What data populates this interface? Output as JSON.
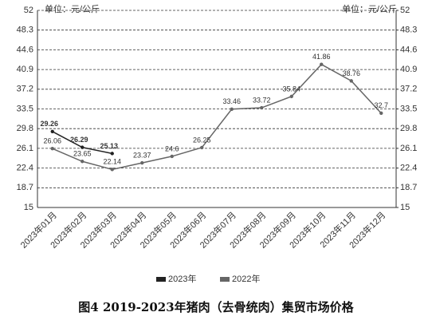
{
  "chart_data": {
    "type": "line",
    "title": "图4 2019-2023年猪肉（去骨统肉）集贸市场价格",
    "y_label": "单位：元/公斤",
    "y2_label": "单位：元/公斤",
    "categories": [
      "2023年01月",
      "2023年02月",
      "2023年03月",
      "2023年04月",
      "2023年05月",
      "2023年06月",
      "2023年07月",
      "2023年08月",
      "2023年09月",
      "2023年10月",
      "2023年11月",
      "2023年12月"
    ],
    "series": [
      {
        "name": "2023年",
        "color": "#222222",
        "values": [
          29.26,
          26.29,
          25.13,
          null,
          null,
          null,
          null,
          null,
          null,
          null,
          null,
          null
        ]
      },
      {
        "name": "2022年",
        "color": "#666666",
        "values": [
          26.06,
          23.65,
          22.14,
          23.37,
          24.6,
          26.25,
          33.46,
          33.72,
          35.84,
          41.86,
          38.76,
          32.7
        ]
      }
    ],
    "ylim": [
      15,
      52
    ],
    "yticks": [
      15,
      18.7,
      22.4,
      26.1,
      29.8,
      33.5,
      37.2,
      40.9,
      44.6,
      48.3,
      52
    ],
    "y2lim": [
      15,
      52
    ],
    "y2ticks": [
      15,
      18.7,
      22.4,
      26.1,
      29.8,
      33.5,
      37.2,
      40.9,
      44.6,
      48.3,
      52
    ],
    "grid": true,
    "legend": "bottom"
  }
}
